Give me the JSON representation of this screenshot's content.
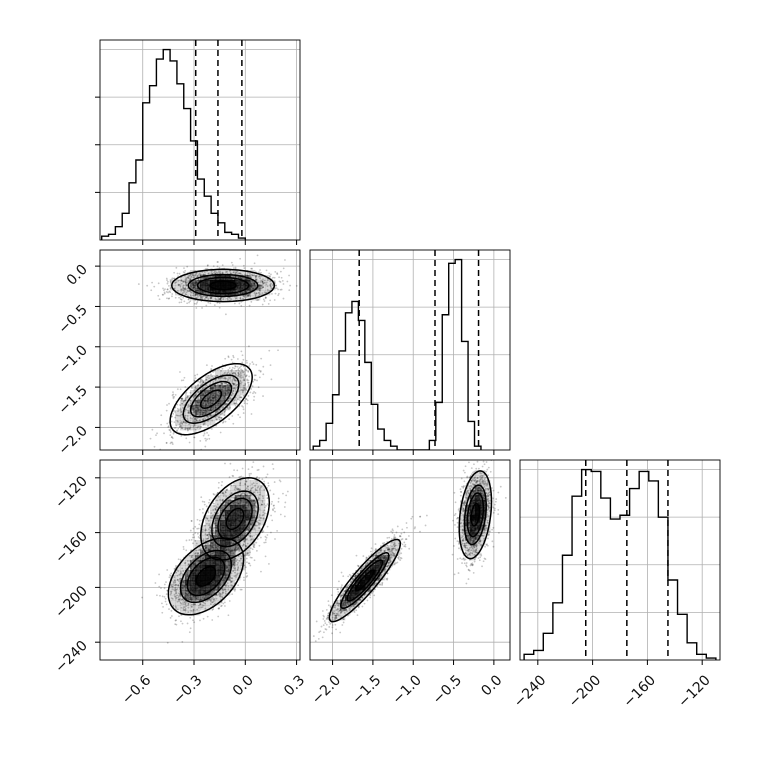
{
  "chart_data": {
    "type": "corner",
    "grid": true,
    "quantiles": [
      0.16,
      0.5,
      0.84
    ],
    "parameters": [
      {
        "ticks": [
          -0.6,
          -0.3,
          0.0,
          0.3
        ],
        "tick_labels": [
          "−0.6",
          "−0.3",
          "0.0",
          "0.3"
        ],
        "range": [
          -0.85,
          0.32
        ],
        "quantile_values": [
          -0.29,
          -0.16,
          -0.02
        ],
        "hist": {
          "edges_start": -0.84,
          "bin_width": 0.04,
          "counts": [
            2,
            3,
            7,
            14,
            30,
            42,
            72,
            81,
            95,
            100,
            94,
            82,
            69,
            52,
            32,
            23,
            14,
            9,
            4,
            3,
            1
          ]
        }
      },
      {
        "ticks": [
          -2.0,
          -1.5,
          -1.0,
          -0.5,
          0.0
        ],
        "tick_labels": [
          "−2.0",
          "−1.5",
          "−1.0",
          "−0.5",
          "0.0"
        ],
        "range": [
          -2.28,
          0.2
        ],
        "quantile_values": [
          -1.67,
          -0.73,
          -0.19
        ],
        "hist": {
          "edges_start": -2.24,
          "bin_width": 0.08,
          "counts": [
            2,
            5,
            14,
            29,
            52,
            72,
            78,
            68,
            46,
            24,
            11,
            5,
            2,
            0,
            0,
            0,
            0,
            0,
            5,
            25,
            71,
            98,
            100,
            57,
            15,
            2
          ]
        }
      },
      {
        "ticks": [
          -240,
          -200,
          -160,
          -120
        ],
        "tick_labels": [
          "−240",
          "−200",
          "−160",
          "−120"
        ],
        "range": [
          -253,
          -107
        ],
        "quantile_values": [
          -205,
          -175,
          -145
        ],
        "hist": {
          "edges_start": -250,
          "bin_width": 7,
          "counts": [
            3,
            5,
            14,
            30,
            55,
            86,
            100,
            99,
            85,
            74,
            76,
            90,
            99,
            94,
            75,
            42,
            24,
            9,
            3,
            1
          ]
        }
      }
    ],
    "pairs": [
      {
        "row": 1,
        "col": 0,
        "modes": [
          {
            "x": -0.13,
            "y": -0.24,
            "sx": 0.15,
            "sy": 0.1,
            "rho": 0.0,
            "weight": 0.55
          },
          {
            "x": -0.2,
            "y": -1.65,
            "sx": 0.12,
            "sy": 0.22,
            "rho": 0.62,
            "weight": 0.45
          }
        ]
      },
      {
        "row": 2,
        "col": 0,
        "modes": [
          {
            "x": -0.23,
            "y": -192,
            "sx": 0.11,
            "sy": 14,
            "rho": 0.45,
            "weight": 0.55
          },
          {
            "x": -0.06,
            "y": -150,
            "sx": 0.1,
            "sy": 15,
            "rho": 0.4,
            "weight": 0.45
          }
        ]
      },
      {
        "row": 2,
        "col": 1,
        "modes": [
          {
            "x": -1.6,
            "y": -195,
            "sx": 0.22,
            "sy": 15,
            "rho": 0.9,
            "weight": 0.5
          },
          {
            "x": -0.23,
            "y": -147,
            "sx": 0.1,
            "sy": 16,
            "rho": 0.3,
            "weight": 0.5
          }
        ]
      }
    ]
  },
  "style": {
    "line_color": "#000000",
    "grid_color": "#b0b0b0",
    "density_color": "#000000",
    "background": "#ffffff"
  }
}
